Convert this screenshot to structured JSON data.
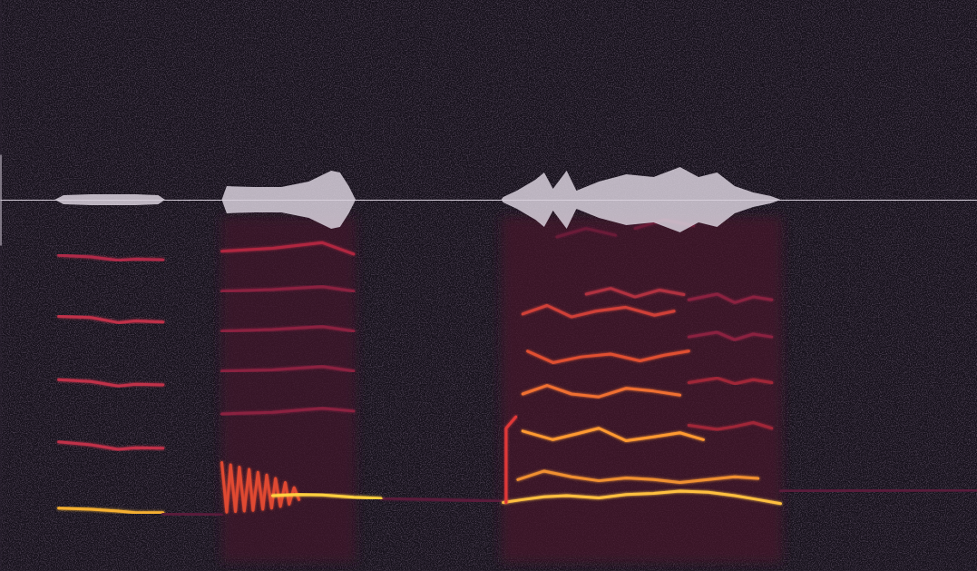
{
  "chart_data": [
    {
      "type": "spectrogram",
      "xlim": [
        0,
        100
      ],
      "ylim": [
        0,
        100
      ],
      "xticks": [],
      "yticks": [],
      "tick_labels": false,
      "clim": [
        0,
        1
      ],
      "cells": [
        {
          "x": [
            22.7,
            36.4
          ],
          "y": [
            1.5,
            62
          ],
          "value": 0.18
        },
        {
          "x": [
            51.3,
            80.0
          ],
          "y": [
            1.5,
            62
          ],
          "value": 0.2
        }
      ],
      "series": [
        {
          "color": "#f5b030",
          "x": [
            6.0,
            9.3,
            12.1,
            13.9,
            16.7
          ],
          "values": [
            11.0,
            10.8,
            10.5,
            10.2,
            10.2
          ]
        },
        {
          "color": "#c0304a",
          "x": [
            6.0,
            9.3,
            12.1,
            13.9,
            16.7
          ],
          "values": [
            22.6,
            22.1,
            21.3,
            21.6,
            21.5
          ]
        },
        {
          "color": "#c0304a",
          "x": [
            6.0,
            9.3,
            12.1,
            13.9,
            16.7
          ],
          "values": [
            33.5,
            33.2,
            32.4,
            32.7,
            32.6
          ]
        },
        {
          "color": "#c0304a",
          "x": [
            6.0,
            9.3,
            12.1,
            13.9,
            16.7
          ],
          "values": [
            44.6,
            44.4,
            43.5,
            43.8,
            43.6
          ]
        },
        {
          "color": "#b02c48",
          "x": [
            6.0,
            9.3,
            12.1,
            13.9,
            16.7
          ],
          "values": [
            55.3,
            55.0,
            54.4,
            54.6,
            54.5
          ]
        },
        {
          "color": "#5a1a3a",
          "x": [
            16.7,
            22.7
          ],
          "values": [
            10.0,
            9.8
          ]
        },
        {
          "color": "#5a1a3a",
          "x": [
            39.0,
            51.3
          ],
          "values": [
            12.7,
            12.2
          ]
        },
        {
          "color": "#5a1a3a",
          "x": [
            79.9,
            100
          ],
          "values": [
            14.0,
            14.2
          ]
        },
        {
          "color": "#e04830",
          "x": [
            22.7,
            23.2,
            23.6,
            24.1,
            24.5,
            25.0,
            25.5,
            25.9,
            26.4,
            26.9,
            27.3,
            27.8,
            28.2,
            28.7,
            29.2,
            29.6,
            30.1,
            30.6
          ],
          "values": [
            19.0,
            10.3,
            18.6,
            10.4,
            18.2,
            10.5,
            17.8,
            10.6,
            17.3,
            10.8,
            16.8,
            11.0,
            16.2,
            11.3,
            15.5,
            11.7,
            14.6,
            12.5
          ]
        },
        {
          "color": "#ffd040",
          "x": [
            27.9,
            30.6,
            33.0,
            36.2,
            39.0
          ],
          "values": [
            13.2,
            13.4,
            13.3,
            12.9,
            12.7
          ]
        },
        {
          "color": "#8a2040",
          "x": [
            22.7,
            27.9,
            33.0,
            36.2
          ],
          "values": [
            27.5,
            27.8,
            28.5,
            28.0
          ]
        },
        {
          "color": "#8a2040",
          "x": [
            22.7,
            27.9,
            33.0,
            36.2
          ],
          "values": [
            35.0,
            35.2,
            35.8,
            35.0
          ]
        },
        {
          "color": "#8a2040",
          "x": [
            22.7,
            27.9,
            33.0,
            36.2
          ],
          "values": [
            42.0,
            42.3,
            42.8,
            42.0
          ]
        },
        {
          "color": "#8a2040",
          "x": [
            22.7,
            27.9,
            33.0,
            36.2
          ],
          "values": [
            49.0,
            49.3,
            49.8,
            49.0
          ]
        },
        {
          "color": "#b02840",
          "x": [
            22.7,
            27.9,
            33.0,
            36.2
          ],
          "values": [
            56.0,
            56.5,
            57.5,
            55.5
          ]
        },
        {
          "color": "#ffc040",
          "x": [
            51.5,
            53.5,
            55.7,
            58.0,
            61.3,
            64.1,
            66.9,
            69.6,
            72.5,
            75.2,
            77.6,
            79.9
          ],
          "values": [
            12.0,
            12.5,
            13.0,
            13.2,
            12.8,
            13.4,
            13.6,
            14.0,
            13.8,
            13.2,
            12.5,
            11.8
          ]
        },
        {
          "color": "#f09030",
          "x": [
            53.0,
            55.7,
            58.5,
            61.3,
            64.1,
            66.9,
            69.6,
            72.5,
            75.2,
            77.6
          ],
          "values": [
            16.0,
            17.5,
            16.5,
            15.8,
            16.3,
            16.0,
            15.5,
            16.0,
            16.5,
            16.2
          ]
        },
        {
          "color": "#e03838",
          "x": [
            51.8,
            51.8,
            52.8
          ],
          "values": [
            12.0,
            25.0,
            27.0
          ]
        },
        {
          "color": "#ff9a30",
          "x": [
            53.5,
            56.6,
            59.0,
            61.3,
            64.1,
            66.9,
            69.6,
            72.0
          ],
          "values": [
            24.5,
            23.0,
            24.0,
            25.0,
            22.8,
            23.5,
            24.2,
            23.0
          ]
        },
        {
          "color": "#f07030",
          "x": [
            53.5,
            56.0,
            58.5,
            61.3,
            64.1,
            66.9,
            69.6
          ],
          "values": [
            31.0,
            32.5,
            31.0,
            30.5,
            32.0,
            31.5,
            30.8
          ]
        },
        {
          "color": "#e05030",
          "x": [
            54.0,
            56.6,
            59.5,
            62.5,
            65.5,
            68.0,
            70.5
          ],
          "values": [
            38.5,
            36.5,
            37.5,
            38.0,
            36.8,
            37.8,
            38.5
          ]
        },
        {
          "color": "#d04038",
          "x": [
            53.5,
            56.0,
            58.5,
            61.0,
            64.0,
            67.0,
            69.0
          ],
          "values": [
            45.0,
            46.5,
            44.5,
            45.5,
            46.2,
            44.8,
            45.5
          ]
        },
        {
          "color": "#b03040",
          "x": [
            60.0,
            62.5,
            65.0,
            67.5,
            70.0
          ],
          "values": [
            48.5,
            49.5,
            48.0,
            49.2,
            48.4
          ]
        },
        {
          "color": "#a02838",
          "x": [
            70.5,
            73.4,
            75.2,
            77.1,
            79.0
          ],
          "values": [
            25.5,
            24.8,
            25.3,
            26.0,
            25.0
          ]
        },
        {
          "color": "#a02838",
          "x": [
            70.5,
            73.4,
            75.2,
            77.1,
            79.0
          ],
          "values": [
            33.0,
            33.8,
            32.8,
            33.5,
            33.0
          ]
        },
        {
          "color": "#8a2040",
          "x": [
            70.5,
            73.4,
            75.2,
            77.1,
            79.0
          ],
          "values": [
            41.0,
            41.8,
            40.5,
            41.5,
            41.0
          ]
        },
        {
          "color": "#8a2040",
          "x": [
            70.5,
            73.4,
            75.2,
            77.1,
            79.0
          ],
          "values": [
            47.5,
            48.5,
            47.0,
            48.0,
            47.5
          ]
        },
        {
          "color": "#6a1a38",
          "x": [
            57.0,
            60.0,
            63.0
          ],
          "values": [
            58.5,
            60.0,
            58.8
          ]
        },
        {
          "color": "#6a1a38",
          "x": [
            65.0,
            68.0,
            71.0
          ],
          "values": [
            60.0,
            61.5,
            60.5
          ]
        }
      ]
    },
    {
      "type": "area",
      "xlim": [
        0,
        100
      ],
      "ylim": [
        -1,
        1
      ],
      "xticks": [],
      "yticks": [],
      "tick_labels": false,
      "color": "#d8d0dc",
      "x": [
        0,
        5.6,
        6.5,
        9.3,
        13.9,
        16.2,
        16.9,
        22.7,
        23.2,
        26.0,
        28.8,
        31.6,
        33.9,
        34.8,
        35.7,
        36.4,
        51.3,
        51.5,
        52.9,
        54.8,
        55.7,
        56.6,
        58.0,
        59.0,
        61.3,
        64.1,
        66.9,
        69.6,
        71.5,
        73.4,
        75.2,
        77.1,
        78.9,
        79.9,
        100
      ],
      "values": [
        0,
        0,
        0.1,
        0.12,
        0.12,
        0.1,
        0,
        0,
        0.3,
        0.28,
        0.28,
        0.4,
        0.64,
        0.6,
        0.3,
        0,
        0,
        0.06,
        0.2,
        0.44,
        0.6,
        0.24,
        0.64,
        0.2,
        0.4,
        0.56,
        0.5,
        0.72,
        0.5,
        0.6,
        0.3,
        0.16,
        0.08,
        0,
        0
      ]
    }
  ]
}
